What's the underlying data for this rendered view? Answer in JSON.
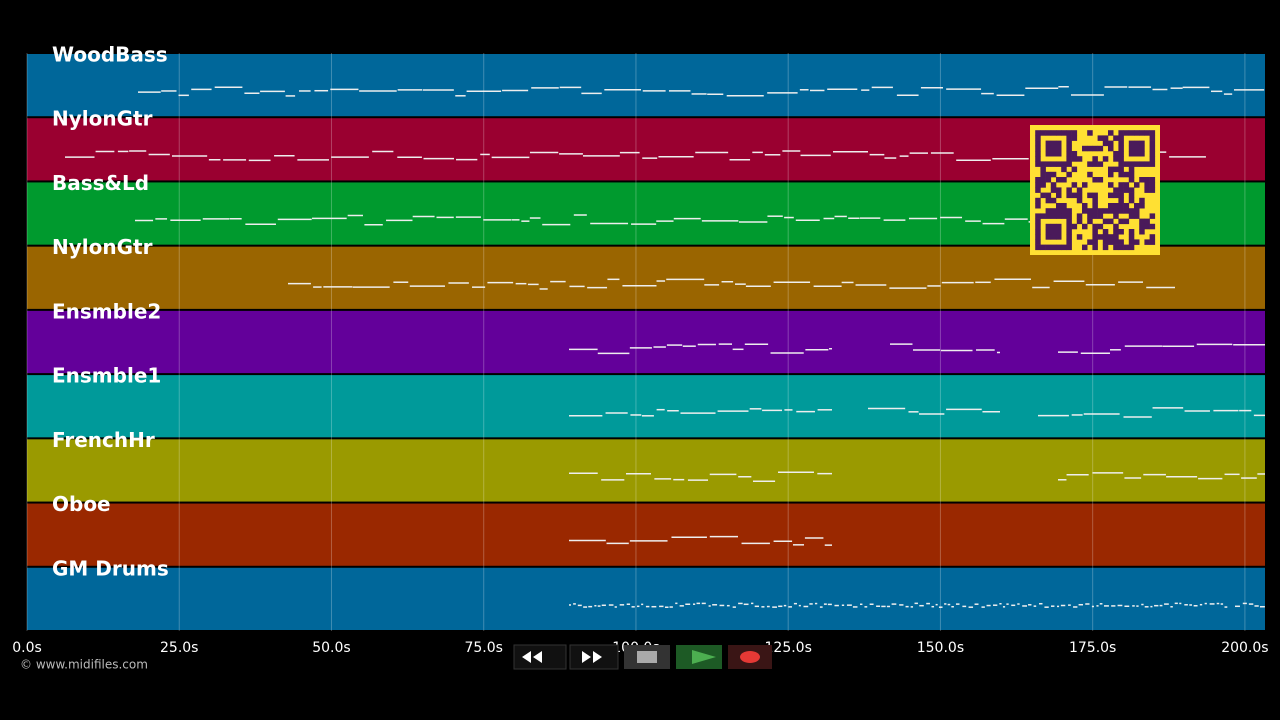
{
  "tracks": [
    {
      "name": "WoodBass",
      "color": "#00679a"
    },
    {
      "name": "NylonGtr",
      "color": "#9a0030"
    },
    {
      "name": "Bass&Ld",
      "color": "#009a2e"
    },
    {
      "name": "NylonGtr",
      "color": "#9a6500"
    },
    {
      "name": "Ensmble2",
      "color": "#63009a"
    },
    {
      "name": "Ensmble1",
      "color": "#009a9a"
    },
    {
      "name": "FrenchHr",
      "color": "#9a9a00"
    },
    {
      "name": "Oboe",
      "color": "#9a2800"
    },
    {
      "name": "GM Drums",
      "color": "#00679a"
    }
  ],
  "time_axis": {
    "lim": [
      0,
      203.3
    ],
    "ticks": [
      {
        "value": 0,
        "label": "0.0s"
      },
      {
        "value": 25,
        "label": "25.0s"
      },
      {
        "value": 50,
        "label": "50.0s"
      },
      {
        "value": 75,
        "label": "75.0s"
      },
      {
        "value": 100,
        "label": "100.0s"
      },
      {
        "value": 125,
        "label": "125.0s"
      },
      {
        "value": 150,
        "label": "150.0s"
      },
      {
        "value": 175,
        "label": "175.0s"
      },
      {
        "value": 200,
        "label": "200.0s"
      }
    ]
  },
  "footer": {
    "copyright": "© www.midifiles.com"
  }
}
